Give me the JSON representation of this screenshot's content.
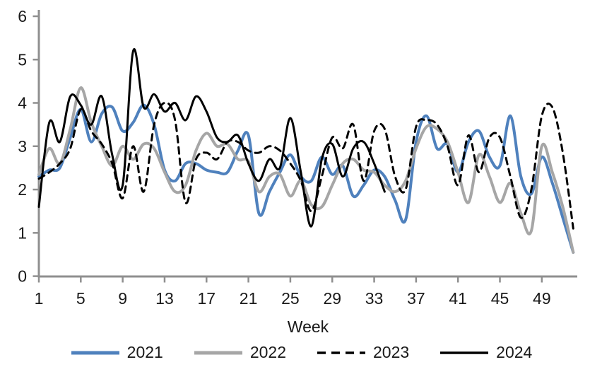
{
  "chart_data": {
    "type": "line",
    "title": "",
    "xlabel": "Week",
    "ylabel": "",
    "x_unit": "week",
    "xlim": [
      1,
      52.5
    ],
    "ylim": [
      0,
      6
    ],
    "y_ticks": [
      0,
      1,
      2,
      3,
      4,
      5,
      6
    ],
    "x_ticks": [
      1,
      5,
      9,
      13,
      17,
      21,
      25,
      29,
      33,
      37,
      41,
      45,
      49
    ],
    "grid": false,
    "smoothed": true,
    "legend_position": "bottom",
    "axis_color": "#8f8f8f",
    "label_color": "#1a1a1a",
    "series": [
      {
        "name": "2021",
        "color": "#4f81bd",
        "dash": "solid",
        "width": 4,
        "values": [
          2.3,
          2.45,
          2.5,
          3.2,
          3.85,
          3.1,
          3.75,
          3.9,
          3.35,
          3.55,
          3.95,
          3.5,
          2.45,
          2.2,
          2.6,
          2.6,
          2.45,
          2.4,
          2.4,
          2.9,
          3.25,
          1.45,
          1.95,
          2.4,
          2.8,
          2.3,
          2.2,
          2.75,
          2.35,
          2.55,
          1.85,
          2.1,
          2.45,
          2.3,
          1.75,
          1.3,
          3.1,
          3.7,
          2.95,
          3.05,
          2.4,
          3.1,
          3.35,
          2.75,
          2.55,
          3.7,
          2.3,
          1.9,
          2.75,
          2.15,
          1.35,
          0.55
        ]
      },
      {
        "name": "2022",
        "color": "#a6a6a6",
        "dash": "solid",
        "width": 4,
        "values": [
          2.35,
          2.95,
          2.6,
          3.4,
          4.35,
          3.55,
          3.0,
          2.55,
          3.0,
          2.7,
          3.05,
          2.95,
          2.4,
          1.95,
          2.1,
          2.9,
          3.3,
          3.0,
          3.05,
          2.7,
          2.65,
          1.95,
          2.3,
          2.35,
          1.85,
          2.2,
          1.65,
          1.6,
          2.1,
          2.6,
          2.7,
          2.45,
          2.4,
          2.1,
          1.95,
          2.2,
          2.95,
          3.45,
          3.4,
          3.1,
          2.4,
          1.7,
          2.8,
          2.3,
          1.7,
          2.15,
          1.45,
          1.05,
          3.0,
          2.4,
          1.6,
          0.55
        ]
      },
      {
        "name": "2023",
        "color": "#000000",
        "dash": "dashed",
        "width": 3,
        "values": [
          2.25,
          2.4,
          2.6,
          2.95,
          3.85,
          3.35,
          3.05,
          2.6,
          1.8,
          3.0,
          1.95,
          3.5,
          4.0,
          3.6,
          1.7,
          2.7,
          2.85,
          2.7,
          3.1,
          3.1,
          2.9,
          2.85,
          3.0,
          2.9,
          2.6,
          2.2,
          1.5,
          2.3,
          3.2,
          2.95,
          3.5,
          2.2,
          3.35,
          3.4,
          2.3,
          2.0,
          3.45,
          3.6,
          3.5,
          3.0,
          2.1,
          3.25,
          2.4,
          3.2,
          3.2,
          2.3,
          1.35,
          2.0,
          3.7,
          3.9,
          2.85,
          1.1
        ]
      },
      {
        "name": "2024",
        "color": "#000000",
        "dash": "solid",
        "width": 3,
        "values": [
          1.6,
          3.55,
          3.1,
          4.15,
          3.95,
          3.5,
          4.15,
          2.8,
          2.1,
          5.2,
          3.9,
          4.2,
          3.8,
          4.0,
          3.6,
          4.15,
          3.8,
          3.2,
          3.1,
          3.25,
          2.6,
          2.2,
          2.7,
          2.5,
          3.65,
          2.4,
          1.15,
          2.7,
          3.05,
          2.3,
          2.95,
          3.1,
          2.6,
          1.95
        ]
      }
    ]
  }
}
